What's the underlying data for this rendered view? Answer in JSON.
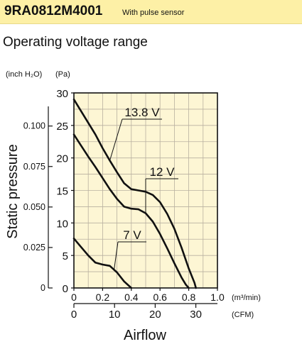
{
  "header": {
    "model": "9RA0812M4001",
    "note": "With pulse sensor"
  },
  "subtitle": "Operating voltage range",
  "chart_data": {
    "type": "line",
    "xlabel": "Airflow",
    "ylabel": "Static pressure",
    "x_unit_primary": "(m³/min)",
    "x_unit_secondary": "(CFM)",
    "y_unit_primary": "(Pa)",
    "y_unit_secondary": "(inch H₂O)",
    "xlim": [
      0,
      1.0
    ],
    "ylim": [
      0,
      30
    ],
    "x_ticks": [
      0,
      0.2,
      0.4,
      0.6,
      0.8,
      1.0
    ],
    "x_tick_labels": [
      "0",
      "0.2",
      "0.4",
      "0.6",
      "0.8",
      "1.0"
    ],
    "y_ticks": [
      0,
      5,
      10,
      15,
      20,
      25,
      30
    ],
    "y_tick_labels": [
      "0",
      "5",
      "10",
      "15",
      "20",
      "25",
      "30"
    ],
    "x2_ticks": [
      0,
      10,
      20,
      30
    ],
    "x2_tick_labels": [
      "0",
      "10",
      "20",
      "30"
    ],
    "y2_ticks": [
      0,
      0.025,
      0.05,
      0.075,
      0.1
    ],
    "y2_tick_labels": [
      "0",
      "0.025",
      "0.050",
      "0.075",
      "0.100"
    ],
    "grid": true,
    "background_color": "#fdf6d4",
    "series": [
      {
        "name": "13.8 V",
        "x": [
          0,
          0.05,
          0.1,
          0.15,
          0.2,
          0.25,
          0.3,
          0.35,
          0.4,
          0.45,
          0.5,
          0.55,
          0.6,
          0.65,
          0.7,
          0.75,
          0.8,
          0.84,
          0.85
        ],
        "y": [
          29,
          27.2,
          25.4,
          23.6,
          21.5,
          19.6,
          17.8,
          16.1,
          15.2,
          15.0,
          14.8,
          14.3,
          13.2,
          11.4,
          9.1,
          6.2,
          3.0,
          0.8,
          0
        ]
      },
      {
        "name": "12 V",
        "x": [
          0,
          0.05,
          0.1,
          0.15,
          0.2,
          0.25,
          0.3,
          0.35,
          0.4,
          0.45,
          0.5,
          0.55,
          0.6,
          0.65,
          0.7,
          0.75,
          0.78,
          0.8
        ],
        "y": [
          23.6,
          21.9,
          20.2,
          18.6,
          16.9,
          15.2,
          13.7,
          12.5,
          12.2,
          12.1,
          11.5,
          10.2,
          8.3,
          6.1,
          3.8,
          1.6,
          0.5,
          0
        ]
      },
      {
        "name": "7 V",
        "x": [
          0,
          0.05,
          0.1,
          0.15,
          0.2,
          0.25,
          0.3,
          0.35,
          0.4
        ],
        "y": [
          7.6,
          6.3,
          5.0,
          3.9,
          3.6,
          3.4,
          2.4,
          1.0,
          0
        ]
      }
    ]
  }
}
